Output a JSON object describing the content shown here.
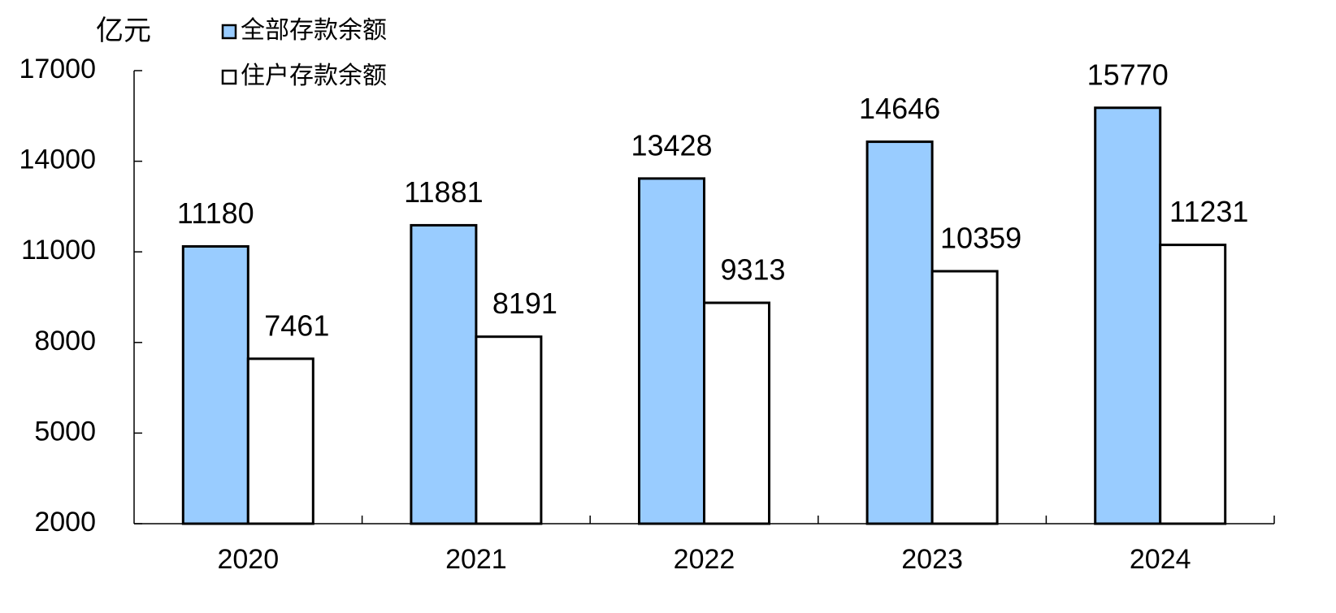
{
  "chart_data": {
    "type": "bar",
    "y_label": "亿元",
    "categories": [
      "2020",
      "2021",
      "2022",
      "2023",
      "2024"
    ],
    "series": [
      {
        "name": "全部存款余额",
        "color": "#99ccff",
        "values": [
          11180,
          11881,
          13428,
          14646,
          15770
        ]
      },
      {
        "name": "住户存款余额",
        "color": "#ffffff",
        "values": [
          7461,
          8191,
          9313,
          10359,
          11231
        ]
      }
    ],
    "ylim": [
      2000,
      17000
    ],
    "yticks": [
      2000,
      5000,
      8000,
      11000,
      14000,
      17000
    ],
    "grid": false,
    "legend": "top-left"
  }
}
